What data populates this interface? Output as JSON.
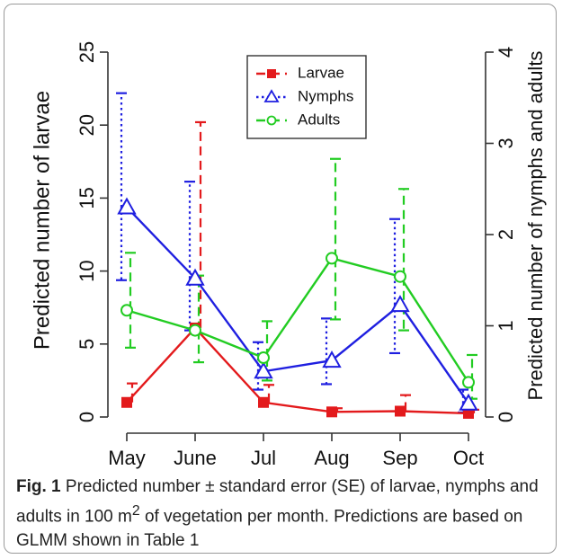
{
  "chart_data": {
    "type": "line",
    "categories": [
      "May",
      "June",
      "Jul",
      "Aug",
      "Sep",
      "Oct"
    ],
    "ylabel_left": "Predicted number of larvae",
    "ylabel_right": "Predicted number of nymphs and adults",
    "ylim_left": [
      0,
      25
    ],
    "ylim_right": [
      0,
      4
    ],
    "yticks_left": [
      "0",
      "5",
      "10",
      "15",
      "20",
      "25"
    ],
    "yticks_right": [
      "0",
      "1",
      "2",
      "3",
      "4"
    ],
    "legend_position": "top-center",
    "series": [
      {
        "name": "Larvae",
        "axis": "left",
        "color": "#e31a1c",
        "marker": "square",
        "dash": "dashed",
        "values": [
          1.0,
          6.1,
          1.0,
          0.35,
          0.4,
          0.25
        ],
        "upper": [
          2.3,
          20.2,
          2.2,
          0.6,
          1.5,
          0.5
        ]
      },
      {
        "name": "Nymphs",
        "axis": "right",
        "color": "#1f1fe0",
        "marker": "triangle",
        "dash": "dotted",
        "values": [
          2.3,
          1.52,
          0.5,
          0.62,
          1.23,
          0.15
        ],
        "upper": [
          3.55,
          2.58,
          0.82,
          1.08,
          2.17,
          0.3
        ],
        "lower": [
          1.5,
          0.95,
          0.3,
          0.36,
          0.7,
          0.05
        ]
      },
      {
        "name": "Adults",
        "axis": "right",
        "color": "#22cc22",
        "marker": "circle",
        "dash": "dashed",
        "values": [
          1.17,
          0.95,
          0.65,
          1.74,
          1.54,
          0.38
        ],
        "upper": [
          1.8,
          1.55,
          1.05,
          2.83,
          2.5,
          0.68
        ],
        "lower": [
          0.76,
          0.6,
          0.4,
          1.07,
          0.95,
          0.2
        ]
      }
    ]
  },
  "caption": {
    "label": "Fig. 1",
    "text_pre": " Predicted number ± standard error (SE) of larvae, nymphs and adults in 100 m",
    "superscript": "2",
    "text_post": " of vegetation per month. Predictions are based on GLMM shown in Table 1"
  }
}
